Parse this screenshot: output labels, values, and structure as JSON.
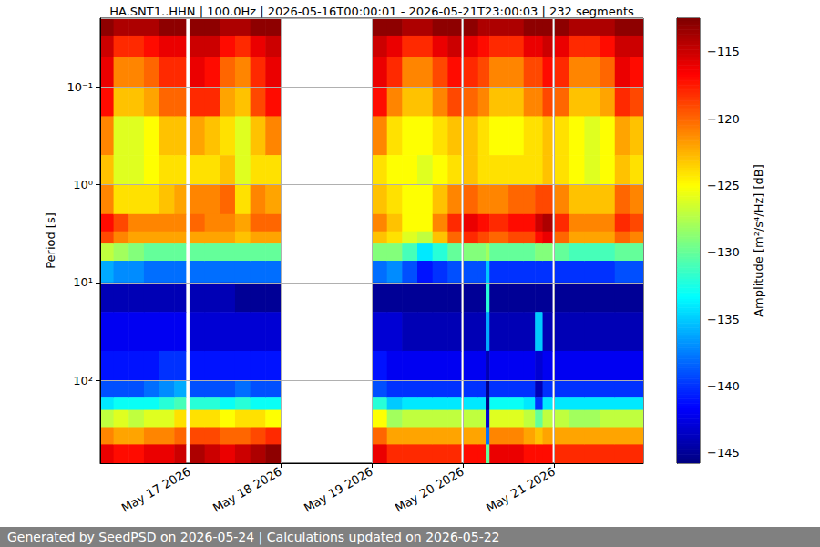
{
  "chart_data": {
    "type": "heatmap",
    "title": "HA.SNT1..HHN | 100.0Hz | 2026-05-16T00:00:01 - 2026-05-21T23:00:03 | 232 segments",
    "y_label": "Period [s]",
    "footer": "Generated by SeedPSD on 2026-05-24 | Calculations updated on 2026-05-22",
    "log": "y",
    "grid": true,
    "xlim": [
      "2026-05-16T00:30",
      "2026-05-21T23:30"
    ],
    "xticks": [
      {
        "value": "2026-05-17T00:00",
        "label": "May 17 2026"
      },
      {
        "value": "2026-05-18T00:00",
        "label": "May 18 2026"
      },
      {
        "value": "2026-05-19T00:00",
        "label": "May 19 2026"
      },
      {
        "value": "2026-05-20T00:00",
        "label": "May 20 2026"
      },
      {
        "value": "2026-05-21T00:00",
        "label": "May 21 2026"
      }
    ],
    "ylim": [
      0.02,
      700
    ],
    "yticks": [
      {
        "value": 0.1,
        "label": "10⁻¹"
      },
      {
        "value": 1,
        "label": "10⁰"
      },
      {
        "value": 10,
        "label": "10¹"
      },
      {
        "value": 100,
        "label": "10²"
      }
    ],
    "colorbar": {
      "label": "Amplitude [m²/s⁴/Hz] [dB]",
      "range": [
        -145.75,
        -112.5
      ],
      "ticks": [
        {
          "value": -115,
          "label": "−115"
        },
        {
          "value": -120,
          "label": "−120"
        },
        {
          "value": -125,
          "label": "−125"
        },
        {
          "value": -130,
          "label": "−130"
        },
        {
          "value": -135,
          "label": "−135"
        },
        {
          "value": -140,
          "label": "−140"
        },
        {
          "value": -145,
          "label": "−145"
        }
      ]
    },
    "cells": {
      "y_edges": [
        0.02,
        0.03,
        0.05,
        0.1,
        0.2,
        0.5,
        1,
        2,
        3,
        4,
        6,
        10,
        20,
        50,
        100,
        150,
        200,
        300,
        450,
        700
      ],
      "x_bins": [
        [
          "2026-05-16T00:30",
          "2026-05-16T04:00"
        ],
        [
          "2026-05-16T04:00",
          "2026-05-16T08:00"
        ],
        [
          "2026-05-16T08:00",
          "2026-05-16T12:00"
        ],
        [
          "2026-05-16T12:00",
          "2026-05-16T16:00"
        ],
        [
          "2026-05-16T16:00",
          "2026-05-16T20:00"
        ],
        [
          "2026-05-16T20:00",
          "2026-05-16T23:00"
        ],
        [
          "2026-05-17T00:00",
          "2026-05-17T04:00"
        ],
        [
          "2026-05-17T04:00",
          "2026-05-17T08:00"
        ],
        [
          "2026-05-17T08:00",
          "2026-05-17T12:00"
        ],
        [
          "2026-05-17T12:00",
          "2026-05-17T16:00"
        ],
        [
          "2026-05-17T16:00",
          "2026-05-17T20:00"
        ],
        [
          "2026-05-17T20:00",
          "2026-05-18T00:00"
        ],
        [
          "2026-05-19T00:00",
          "2026-05-19T04:00"
        ],
        [
          "2026-05-19T04:00",
          "2026-05-19T08:00"
        ],
        [
          "2026-05-19T08:00",
          "2026-05-19T12:00"
        ],
        [
          "2026-05-19T12:00",
          "2026-05-19T16:00"
        ],
        [
          "2026-05-19T16:00",
          "2026-05-19T20:00"
        ],
        [
          "2026-05-19T20:00",
          "2026-05-19T23:30"
        ],
        [
          "2026-05-20T00:00",
          "2026-05-20T04:00"
        ],
        [
          "2026-05-20T04:00",
          "2026-05-20T06:00"
        ],
        [
          "2026-05-20T06:00",
          "2026-05-20T07:00"
        ],
        [
          "2026-05-20T07:00",
          "2026-05-20T12:00"
        ],
        [
          "2026-05-20T12:00",
          "2026-05-20T16:00"
        ],
        [
          "2026-05-20T16:00",
          "2026-05-20T19:00"
        ],
        [
          "2026-05-20T19:00",
          "2026-05-20T21:00"
        ],
        [
          "2026-05-20T21:00",
          "2026-05-20T23:30"
        ],
        [
          "2026-05-21T00:00",
          "2026-05-21T04:00"
        ],
        [
          "2026-05-21T04:00",
          "2026-05-21T08:00"
        ],
        [
          "2026-05-21T08:00",
          "2026-05-21T12:00"
        ],
        [
          "2026-05-21T12:00",
          "2026-05-21T16:00"
        ],
        [
          "2026-05-21T16:00",
          "2026-05-21T20:00"
        ],
        [
          "2026-05-21T20:00",
          "2026-05-21T23:30"
        ]
      ],
      "z": [
        [
          -113,
          -115,
          -116,
          -117,
          -121,
          -123,
          -121,
          -117,
          -119,
          -127,
          -136,
          -144,
          -142,
          -141,
          -139,
          -134,
          -127,
          -121,
          -116
        ],
        [
          -114,
          -118,
          -121,
          -123,
          -126,
          -126,
          -124,
          -119,
          -121,
          -128,
          -137,
          -144,
          -142,
          -141,
          -139,
          -133,
          -126,
          -122,
          -117
        ],
        [
          -114,
          -118,
          -121,
          -123,
          -126,
          -126,
          -124,
          -121,
          -122,
          -129,
          -137,
          -144,
          -142,
          -141,
          -139,
          -133,
          -127,
          -122,
          -117
        ],
        [
          -114,
          -117,
          -120,
          -122,
          -125,
          -125,
          -124,
          -121,
          -122,
          -130,
          -138,
          -144,
          -142,
          -141,
          -138,
          -133,
          -126,
          -121,
          -116
        ],
        [
          -113,
          -116,
          -118,
          -120,
          -123,
          -124,
          -123,
          -121,
          -122,
          -130,
          -138,
          -144,
          -142,
          -140,
          -137,
          -132,
          -126,
          -121,
          -116
        ],
        [
          -113,
          -116,
          -118,
          -120,
          -123,
          -124,
          -122,
          -121,
          -122,
          -130,
          -138,
          -144,
          -142,
          -140,
          -136,
          -131,
          -124,
          -120,
          -115
        ],
        [
          -113,
          -115,
          -116,
          -118,
          -122,
          -124,
          -121,
          -120,
          -122,
          -130,
          -138,
          -144,
          -143,
          -141,
          -139,
          -132,
          -124,
          -119,
          -114
        ],
        [
          -113,
          -115,
          -117,
          -118,
          -123,
          -124,
          -121,
          -121,
          -122,
          -130,
          -138,
          -144,
          -143,
          -141,
          -139,
          -132,
          -124,
          -119,
          -115
        ],
        [
          -114,
          -117,
          -120,
          -122,
          -124,
          -123,
          -120,
          -121,
          -122,
          -130,
          -138,
          -144,
          -143,
          -141,
          -139,
          -133,
          -125,
          -120,
          -116
        ],
        [
          -114,
          -118,
          -121,
          -123,
          -126,
          -126,
          -124,
          -122,
          -123,
          -130,
          -138,
          -145,
          -143,
          -141,
          -138,
          -132,
          -124,
          -120,
          -115
        ],
        [
          -113,
          -116,
          -118,
          -119,
          -123,
          -124,
          -121,
          -120,
          -122,
          -130,
          -138,
          -145,
          -143,
          -141,
          -139,
          -133,
          -124,
          -119,
          -114
        ],
        [
          -113,
          -115,
          -116,
          -117,
          -121,
          -124,
          -122,
          -120,
          -122,
          -130,
          -138,
          -145,
          -143,
          -141,
          -139,
          -133,
          -125,
          -118,
          -113
        ],
        [
          -113,
          -115,
          -116,
          -117,
          -121,
          -124,
          -123,
          -121,
          -123,
          -129,
          -138,
          -145,
          -143,
          -141,
          -139,
          -132,
          -125,
          -120,
          -116
        ],
        [
          -113,
          -116,
          -118,
          -121,
          -124,
          -125,
          -124,
          -123,
          -124,
          -129,
          -137,
          -145,
          -143,
          -142,
          -140,
          -135,
          -128,
          -122,
          -118
        ],
        [
          -114,
          -118,
          -121,
          -123,
          -125,
          -125,
          -125,
          -125,
          -126,
          -131,
          -139,
          -145,
          -144,
          -142,
          -140,
          -134,
          -127,
          -122,
          -118
        ],
        [
          -114,
          -118,
          -121,
          -123,
          -125,
          -126,
          -125,
          -125,
          -127,
          -134,
          -141,
          -145,
          -144,
          -142,
          -140,
          -134,
          -127,
          -122,
          -118
        ],
        [
          -113,
          -116,
          -119,
          -121,
          -124,
          -125,
          -123,
          -121,
          -123,
          -132,
          -140,
          -145,
          -144,
          -142,
          -140,
          -134,
          -127,
          -122,
          -118
        ],
        [
          -113,
          -115,
          -117,
          -119,
          -123,
          -124,
          -121,
          -118,
          -120,
          -130,
          -139,
          -145,
          -144,
          -142,
          -140,
          -134,
          -127,
          -122,
          -118
        ],
        [
          -113,
          -116,
          -118,
          -120,
          -123,
          -123,
          -120,
          -116,
          -118,
          -129,
          -139,
          -145,
          -144,
          -142,
          -140,
          -134,
          -127,
          -122,
          -117
        ],
        [
          -114,
          -117,
          -119,
          -121,
          -124,
          -124,
          -121,
          -117,
          -119,
          -129,
          -139,
          -145,
          -144,
          -142,
          -140,
          -134,
          -127,
          -122,
          -117
        ],
        [
          -114,
          -117,
          -119,
          -121,
          -124,
          -124,
          -121,
          -117,
          -119,
          -128,
          -135,
          -132,
          -136,
          -144,
          -145.5,
          -145.5,
          -143,
          -138,
          -130
        ],
        [
          -114,
          -118,
          -121,
          -123,
          -125,
          -124,
          -121,
          -118,
          -120,
          -130,
          -140,
          -145,
          -144,
          -142,
          -140,
          -133,
          -126,
          -121,
          -116
        ],
        [
          -114,
          -118,
          -121,
          -123,
          -125,
          -124,
          -120,
          -117,
          -119,
          -130,
          -140,
          -145,
          -144,
          -142,
          -140,
          -133,
          -126,
          -121,
          -116
        ],
        [
          -113,
          -116,
          -119,
          -121,
          -124,
          -124,
          -120,
          -117,
          -119,
          -130,
          -140,
          -145,
          -144,
          -142,
          -140,
          -134,
          -127,
          -122,
          -117
        ],
        [
          -113,
          -116,
          -119,
          -121,
          -124,
          -124,
          -119,
          -115,
          -117,
          -129,
          -140,
          -145,
          -135,
          -143,
          -144,
          -140,
          -130,
          -123,
          -117
        ],
        [
          -113,
          -115,
          -117,
          -119,
          -123,
          -123,
          -119,
          -114,
          -116,
          -129,
          -140,
          -145,
          -144,
          -142,
          -140,
          -134,
          -127,
          -122,
          -117
        ],
        [
          -113,
          -116,
          -118,
          -120,
          -124,
          -124,
          -121,
          -118,
          -120,
          -130,
          -140,
          -145,
          -144,
          -142,
          -140,
          -134,
          -127,
          -122,
          -118
        ],
        [
          -114,
          -118,
          -121,
          -123,
          -125,
          -125,
          -123,
          -121,
          -122,
          -131,
          -140,
          -145,
          -144,
          -142,
          -140,
          -134,
          -128,
          -122,
          -118
        ],
        [
          -114,
          -118,
          -121,
          -123,
          -126,
          -126,
          -123,
          -121,
          -122,
          -131,
          -140,
          -145,
          -144,
          -142,
          -140,
          -134,
          -128,
          -122,
          -118
        ],
        [
          -114,
          -117,
          -120,
          -122,
          -125,
          -125,
          -123,
          -121,
          -122,
          -131,
          -140,
          -145,
          -144,
          -142,
          -140,
          -134,
          -127,
          -122,
          -118
        ],
        [
          -113,
          -115,
          -116,
          -118,
          -122,
          -123,
          -120,
          -118,
          -120,
          -130,
          -139,
          -145,
          -144,
          -142,
          -140,
          -134,
          -127,
          -122,
          -118
        ],
        [
          -113,
          -115,
          -117,
          -119,
          -123,
          -124,
          -121,
          -119,
          -121,
          -130,
          -139,
          -145,
          -144,
          -142,
          -140,
          -134,
          -127,
          -122,
          -118
        ]
      ]
    }
  }
}
